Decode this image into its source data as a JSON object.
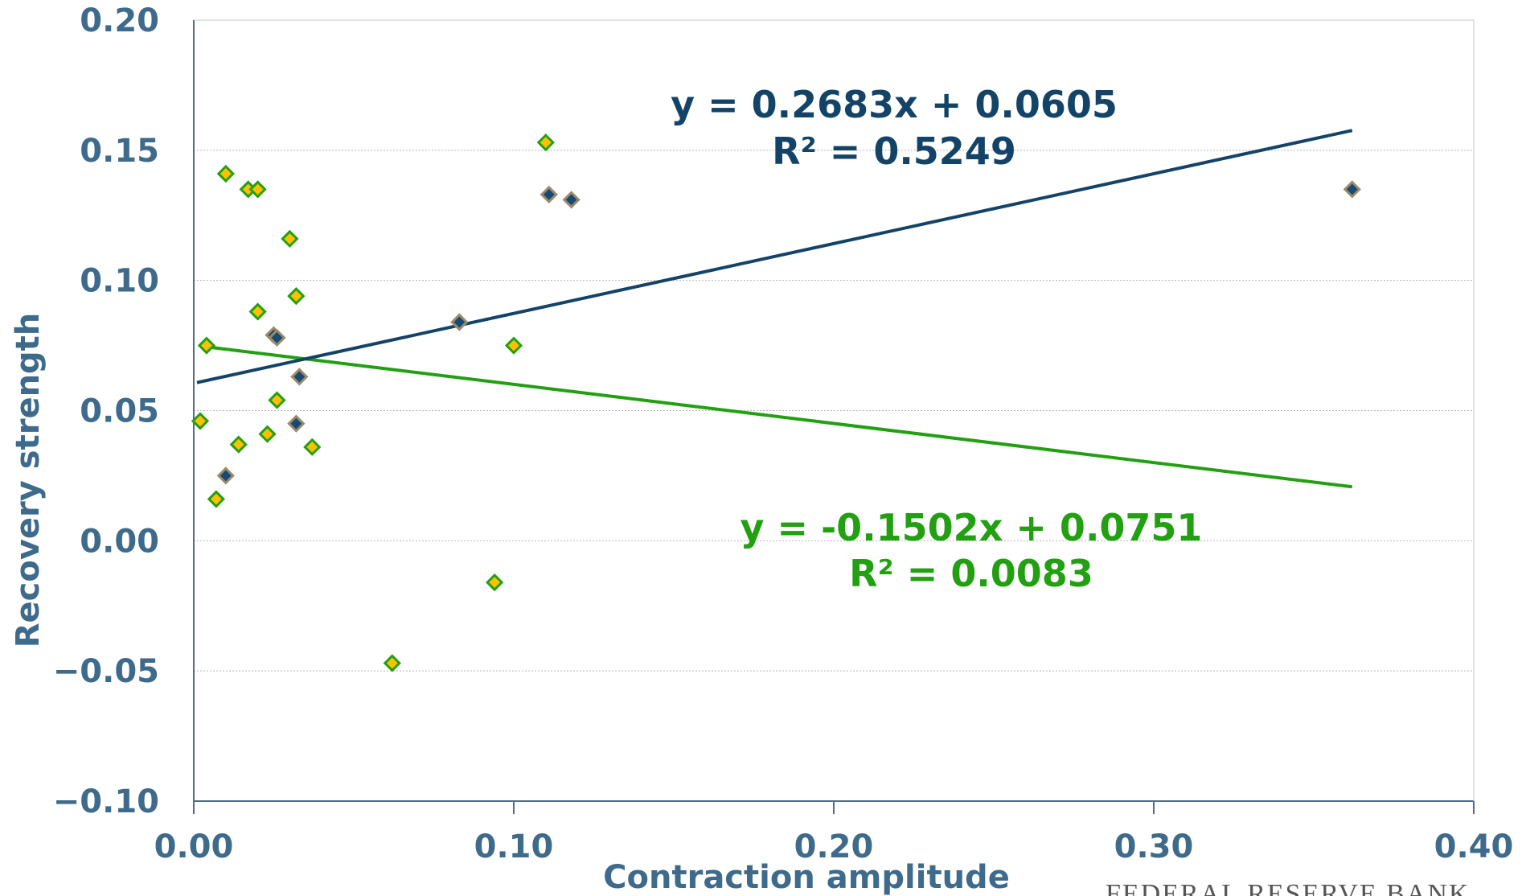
{
  "chart_data": {
    "type": "scatter",
    "xlabel": "Contraction amplitude",
    "ylabel": "Recovery strength",
    "xlim": [
      0,
      0.4
    ],
    "ylim": [
      -0.1,
      0.2
    ],
    "x_ticks": [
      "0.00",
      "0.10",
      "0.20",
      "0.30",
      "0.40"
    ],
    "y_ticks": [
      "-0.10",
      "-0.05",
      "0.00",
      "0.05",
      "0.10",
      "0.15",
      "0.20"
    ],
    "grid": "horizontal",
    "series": [
      {
        "marker": "diamond",
        "fill": "#FFC000",
        "edge": "#22A012",
        "points": [
          {
            "x": 0.002,
            "y": 0.046
          },
          {
            "x": 0.004,
            "y": 0.075
          },
          {
            "x": 0.007,
            "y": 0.016
          },
          {
            "x": 0.01,
            "y": 0.141
          },
          {
            "x": 0.014,
            "y": 0.037
          },
          {
            "x": 0.017,
            "y": 0.135
          },
          {
            "x": 0.02,
            "y": 0.135
          },
          {
            "x": 0.02,
            "y": 0.088
          },
          {
            "x": 0.023,
            "y": 0.041
          },
          {
            "x": 0.026,
            "y": 0.054
          },
          {
            "x": 0.03,
            "y": 0.116
          },
          {
            "x": 0.032,
            "y": 0.094
          },
          {
            "x": 0.037,
            "y": 0.036
          },
          {
            "x": 0.062,
            "y": -0.047
          },
          {
            "x": 0.094,
            "y": -0.016
          },
          {
            "x": 0.1,
            "y": 0.075
          },
          {
            "x": 0.11,
            "y": 0.153
          }
        ],
        "trendline": {
          "slope": -0.1502,
          "intercept": 0.0751,
          "x_range": [
            0.004,
            0.362
          ],
          "color": "#22A012",
          "equation": "y = -0.1502x + 0.0751",
          "r2": "R² = 0.0083"
        }
      },
      {
        "marker": "diamond",
        "fill": "#174A74",
        "edge": "#9A8A6A",
        "points": [
          {
            "x": 0.01,
            "y": 0.025
          },
          {
            "x": 0.025,
            "y": 0.079
          },
          {
            "x": 0.026,
            "y": 0.078
          },
          {
            "x": 0.032,
            "y": 0.045
          },
          {
            "x": 0.033,
            "y": 0.063
          },
          {
            "x": 0.083,
            "y": 0.084
          },
          {
            "x": 0.111,
            "y": 0.133
          },
          {
            "x": 0.118,
            "y": 0.131
          },
          {
            "x": 0.362,
            "y": 0.135
          }
        ],
        "trendline": {
          "slope": 0.2683,
          "intercept": 0.0605,
          "x_range": [
            0.001,
            0.362
          ],
          "color": "#134468",
          "equation": "y = 0.2683x + 0.0605",
          "r2": "R² = 0.5249"
        }
      }
    ]
  },
  "footer_text": "FEDERAL RESERVE BANK",
  "colors": {
    "axis_text": "#3E6A8C",
    "axis_line": "#4F6F8C",
    "gridline": "#B5B5B5"
  }
}
